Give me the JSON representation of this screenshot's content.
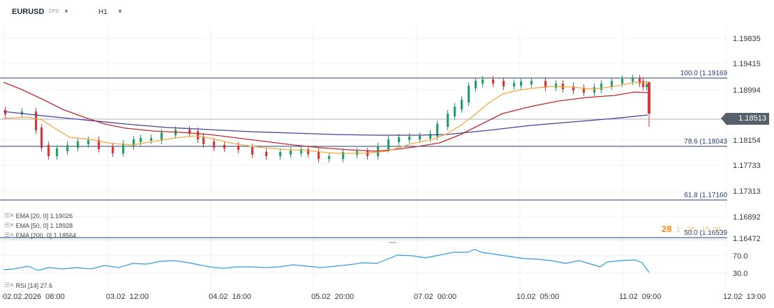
{
  "toolbar": {
    "symbol": "EURUSD",
    "symbol_type": "CFD",
    "timeframe": "H1"
  },
  "price_axis": {
    "ticks": [
      "1.19835",
      "1.19415",
      "1.18994",
      "1.18154",
      "1.17733",
      "1.17313",
      "1.16892",
      "1.16472"
    ],
    "current_price": "1.18513"
  },
  "time_axis": {
    "ticks": [
      "02.02.2026  08:00",
      "03.02  12:00",
      "04.02  16:00",
      "05.02  20:00",
      "07.02  00:00",
      "10.02  05:00",
      "11.02  09:00",
      "12.02  13:00"
    ]
  },
  "fib_levels": [
    {
      "label": "100.0 (1.19169"
    },
    {
      "label": "78.6 (1.18043"
    },
    {
      "label": "61.8 (1.17160"
    },
    {
      "label": "50.0 (1.16539"
    }
  ],
  "indicators": {
    "ema20": {
      "label": "EMA  [20,  0]  1.19026",
      "color": "#f2a93b"
    },
    "ema50": {
      "label": "EMA  [50,  0]  1.18928",
      "color": "#c0282d"
    },
    "ema200": {
      "label": "EMA  [200,  0]  1.18564",
      "color": "#4b3f9e"
    },
    "rsi": {
      "label": "RSI  [14]  27.6",
      "color": "#2e9be0",
      "levels": [
        "70.0",
        "30.0"
      ]
    }
  },
  "countdown": {
    "main": "28",
    "rest": ": 1 : 26 : 15:29"
  },
  "colors": {
    "bull": "#21a366",
    "bear": "#d9383a",
    "fib": "#273b7a"
  }
}
